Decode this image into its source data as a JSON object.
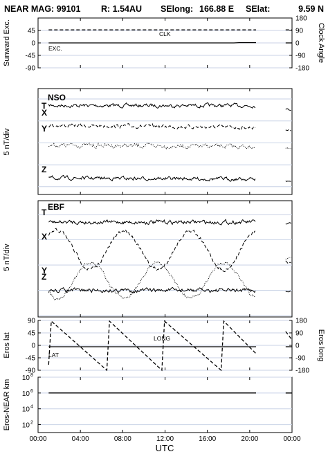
{
  "header": {
    "title": "NEAR MAG: 99101",
    "r_label": "R: 1.54AU",
    "selong_label": "SElong:",
    "selong_value": "166.88 E",
    "selat_label": "SElat:",
    "selat_value": "9.59 N"
  },
  "x_axis": {
    "label": "UTC",
    "ticks": [
      "00:00",
      "04:00",
      "08:00",
      "12:00",
      "16:00",
      "20:00",
      "00:00"
    ],
    "tick_hours": [
      0,
      4,
      8,
      12,
      16,
      20,
      24
    ]
  },
  "colors": {
    "ink": "#000000",
    "grid": "#c8d2e6",
    "background": "#ffffff"
  },
  "chart_data": [
    {
      "type": "line",
      "panel": "sunward",
      "ylabel_left": "Sunward Exc.",
      "ylabel_right": "Clock Angle",
      "yticks_left": [
        "45",
        "0",
        "-45",
        "-90"
      ],
      "ytick_values_left": [
        45,
        0,
        -45,
        -90
      ],
      "yticks_right": [
        "180",
        "90",
        "0",
        "-90",
        "-180"
      ],
      "ylim": [
        -90,
        90
      ],
      "series": [
        {
          "name": "CLK",
          "style": "dashed",
          "x": [
            1.0,
            20.6,
            23.4,
            24.0
          ],
          "y": [
            47,
            47,
            47,
            47
          ],
          "gap_after_index": 1
        },
        {
          "name": "EXC.",
          "style": "solid",
          "x": [
            1.0,
            18.5,
            19.0,
            20.6,
            23.4,
            24.0
          ],
          "y": [
            0,
            0,
            1,
            1,
            0,
            0
          ],
          "gap_after_index": 3
        }
      ]
    },
    {
      "type": "line",
      "panel": "NSO",
      "panel_label": "NSO",
      "ylabel": "5 nT/div",
      "series": [
        {
          "name": "T",
          "style": "solid",
          "level_div": 0.3
        },
        {
          "name": "X",
          "style": "dashed",
          "level_div": 1.2
        },
        {
          "name": "Y",
          "style": "dotted",
          "level_div": 2.1
        },
        {
          "name": "Z",
          "style": "solid",
          "level_div": 3.6
        }
      ]
    },
    {
      "type": "line",
      "panel": "EBF",
      "panel_label": "EBF",
      "ylabel": "5 nT/div",
      "series": [
        {
          "name": "T",
          "style": "solid",
          "level_div": 0.3
        },
        {
          "name": "X",
          "style": "dashed",
          "level_div": 1.4,
          "oscillation_period_h": 6.3
        },
        {
          "name": "Y",
          "style": "dotted",
          "level_div": 2.6,
          "oscillation_period_h": 6.3
        },
        {
          "name": "Z",
          "style": "solid",
          "level_div": 3.0
        }
      ]
    },
    {
      "type": "line",
      "panel": "eros",
      "ylabel_left": "Eros lat",
      "ylabel_right": "Eros long",
      "yticks_left": [
        "90",
        "45",
        "0",
        "-45",
        "-90"
      ],
      "ytick_values_left": [
        90,
        45,
        0,
        -45,
        -90
      ],
      "yticks_right": [
        "180",
        "90",
        "0",
        "-90",
        "-180"
      ],
      "ylim_left": [
        -90,
        90
      ],
      "ylim_right": [
        -180,
        180
      ],
      "series": [
        {
          "name": "LAT",
          "style": "solid",
          "x": [
            1.0,
            20.6,
            23.4,
            24.0
          ],
          "y": [
            -5,
            -5,
            -5,
            -5
          ],
          "gap_after_index": 1
        },
        {
          "name": "LONG",
          "style": "dashed",
          "axis": "right",
          "x": [
            1.0,
            1.25,
            6.5,
            6.75,
            11.7,
            11.95,
            17.3,
            17.55,
            20.6,
            23.4,
            24.0
          ],
          "y": [
            -140,
            175,
            -180,
            175,
            -180,
            175,
            -180,
            175,
            -60,
            100,
            40
          ],
          "gap_after_index": 8
        }
      ]
    },
    {
      "type": "line",
      "panel": "distance",
      "ylabel": "Eros-NEAR km",
      "yscale": "log",
      "yticks": [
        "10",
        "10",
        "10",
        "10"
      ],
      "ytick_exponents": [
        "8",
        "6",
        "4",
        "2"
      ],
      "ytick_values": [
        100000000,
        1000000,
        10000,
        100
      ],
      "ylim": [
        10,
        100000000
      ],
      "series": [
        {
          "name": "distance",
          "style": "solid",
          "x": [
            1.0,
            20.6,
            23.4,
            24.0
          ],
          "y": [
            1000000,
            1000000,
            1000000,
            1000000
          ],
          "gap_after_index": 1
        }
      ]
    }
  ]
}
